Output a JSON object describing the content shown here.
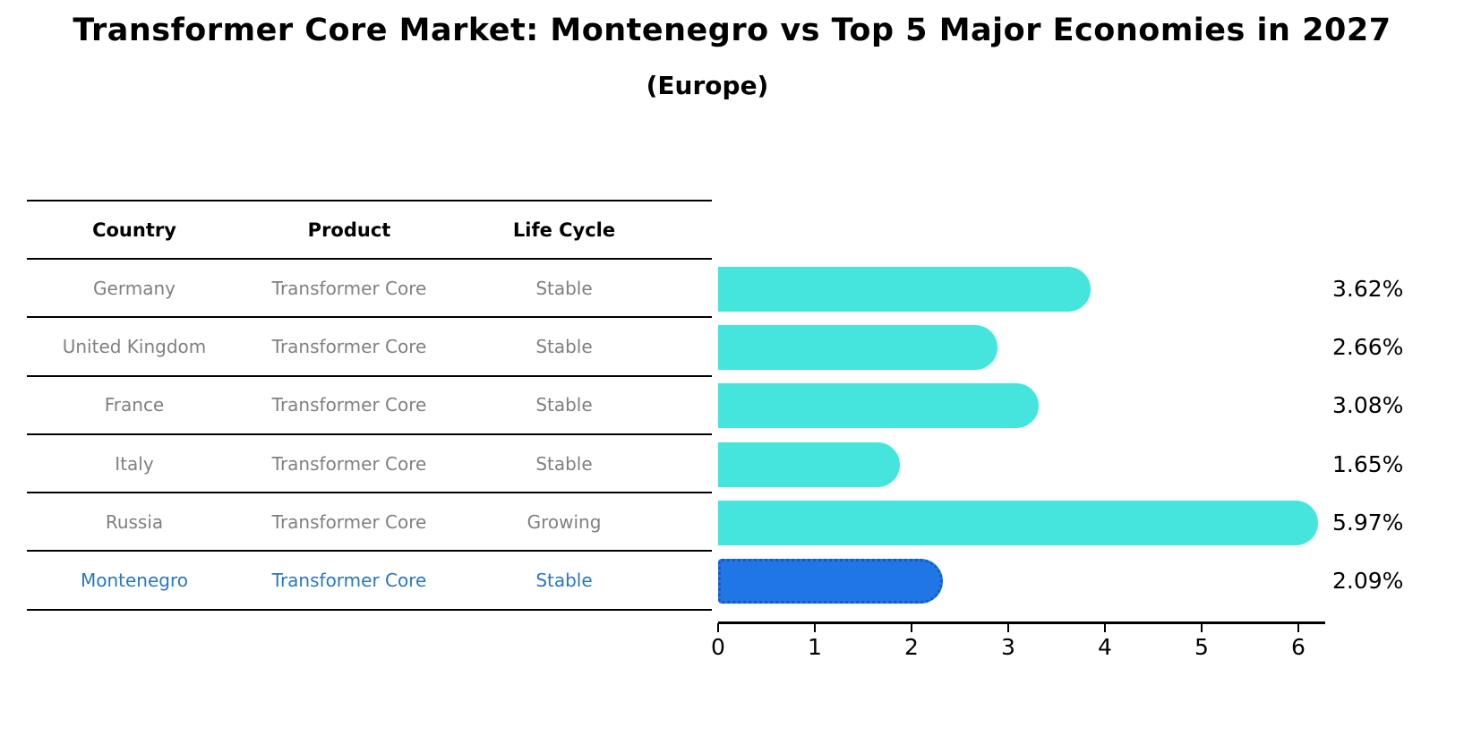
{
  "title": "Transformer Core Market: Montenegro vs Top 5 Major Economies in 2027",
  "subtitle": "(Europe)",
  "table": {
    "headers": [
      "Country",
      "Product",
      "Life Cycle"
    ]
  },
  "chart_data": {
    "type": "bar",
    "orientation": "horizontal",
    "title": "Transformer Core Market: Montenegro vs Top 5 Major Economies in 2027",
    "subtitle": "(Europe)",
    "categories": [
      "Germany",
      "United Kingdom",
      "France",
      "Italy",
      "Russia",
      "Montenegro"
    ],
    "values": [
      3.62,
      2.66,
      3.08,
      1.65,
      5.97,
      2.09
    ],
    "xlim": [
      0,
      6.28
    ],
    "x_ticks": [
      "0",
      "1",
      "2",
      "3",
      "4",
      "5",
      "6"
    ],
    "grid": "off",
    "legend": "none",
    "rows": [
      {
        "country": "Germany",
        "product": "Transformer Core",
        "life_cycle": "Stable",
        "value": 3.62,
        "value_label": "3.62%",
        "highlight": false
      },
      {
        "country": "United Kingdom",
        "product": "Transformer Core",
        "life_cycle": "Stable",
        "value": 2.66,
        "value_label": "2.66%",
        "highlight": false
      },
      {
        "country": "France",
        "product": "Transformer Core",
        "life_cycle": "Stable",
        "value": 3.08,
        "value_label": "3.08%",
        "highlight": false
      },
      {
        "country": "Italy",
        "product": "Transformer Core",
        "life_cycle": "Stable",
        "value": 1.65,
        "value_label": "1.65%",
        "highlight": false
      },
      {
        "country": "Russia",
        "product": "Transformer Core",
        "life_cycle": "Growing",
        "value": 5.97,
        "value_label": "5.97%",
        "highlight": false
      },
      {
        "country": "Montenegro",
        "product": "Transformer Core",
        "life_cycle": "Stable",
        "value": 2.09,
        "value_label": "2.09%",
        "highlight": true
      }
    ],
    "colors": {
      "bar": "#45E5DE",
      "highlight_bar": "#2176E6",
      "highlight_border": "#1559C4",
      "highlight_text": "#2878BE",
      "cell_text": "#808080",
      "header_text": "#000000",
      "label_text": "#000000"
    }
  }
}
